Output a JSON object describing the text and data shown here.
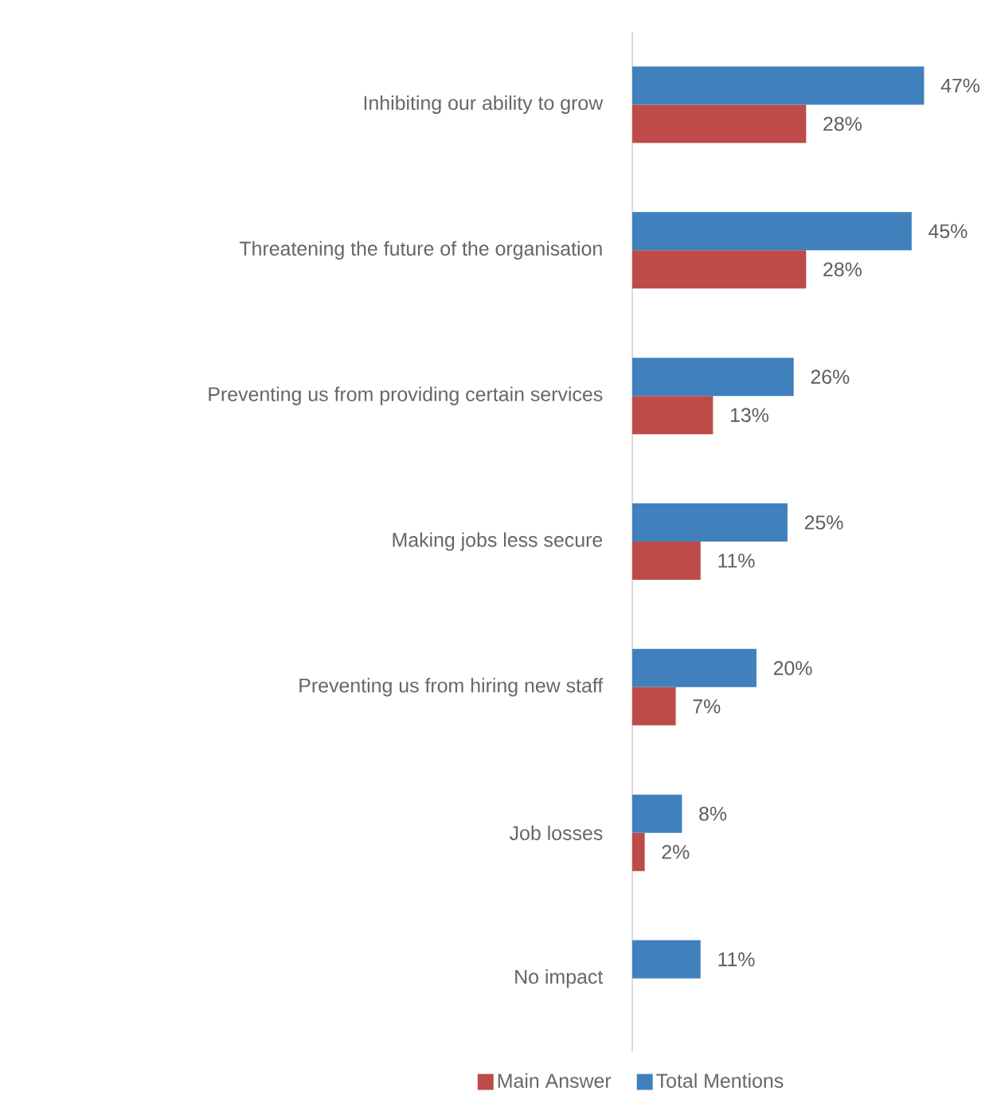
{
  "chart_data": {
    "type": "bar",
    "orientation": "horizontal",
    "legend": "bottom",
    "categories": [
      "Inhibiting our ability to grow",
      "Threatening the future of the organisation",
      "Preventing us from providing certain services",
      "Making jobs less secure",
      "Preventing us from hiring new staff",
      "Job losses",
      "No impact"
    ],
    "series": [
      {
        "name": "Main Answer",
        "color": "#be4b48",
        "values": [
          28,
          28,
          13,
          11,
          7,
          2,
          null
        ],
        "value_labels": [
          "28%",
          "28%",
          "13%",
          "11%",
          "7%",
          "2%",
          null
        ]
      },
      {
        "name": "Total Mentions",
        "color": "#4080bd",
        "values": [
          47,
          45,
          26,
          25,
          20,
          8,
          11
        ],
        "value_labels": [
          "47%",
          "45%",
          "26%",
          "25%",
          "20%",
          "8%",
          "11%"
        ]
      }
    ]
  }
}
